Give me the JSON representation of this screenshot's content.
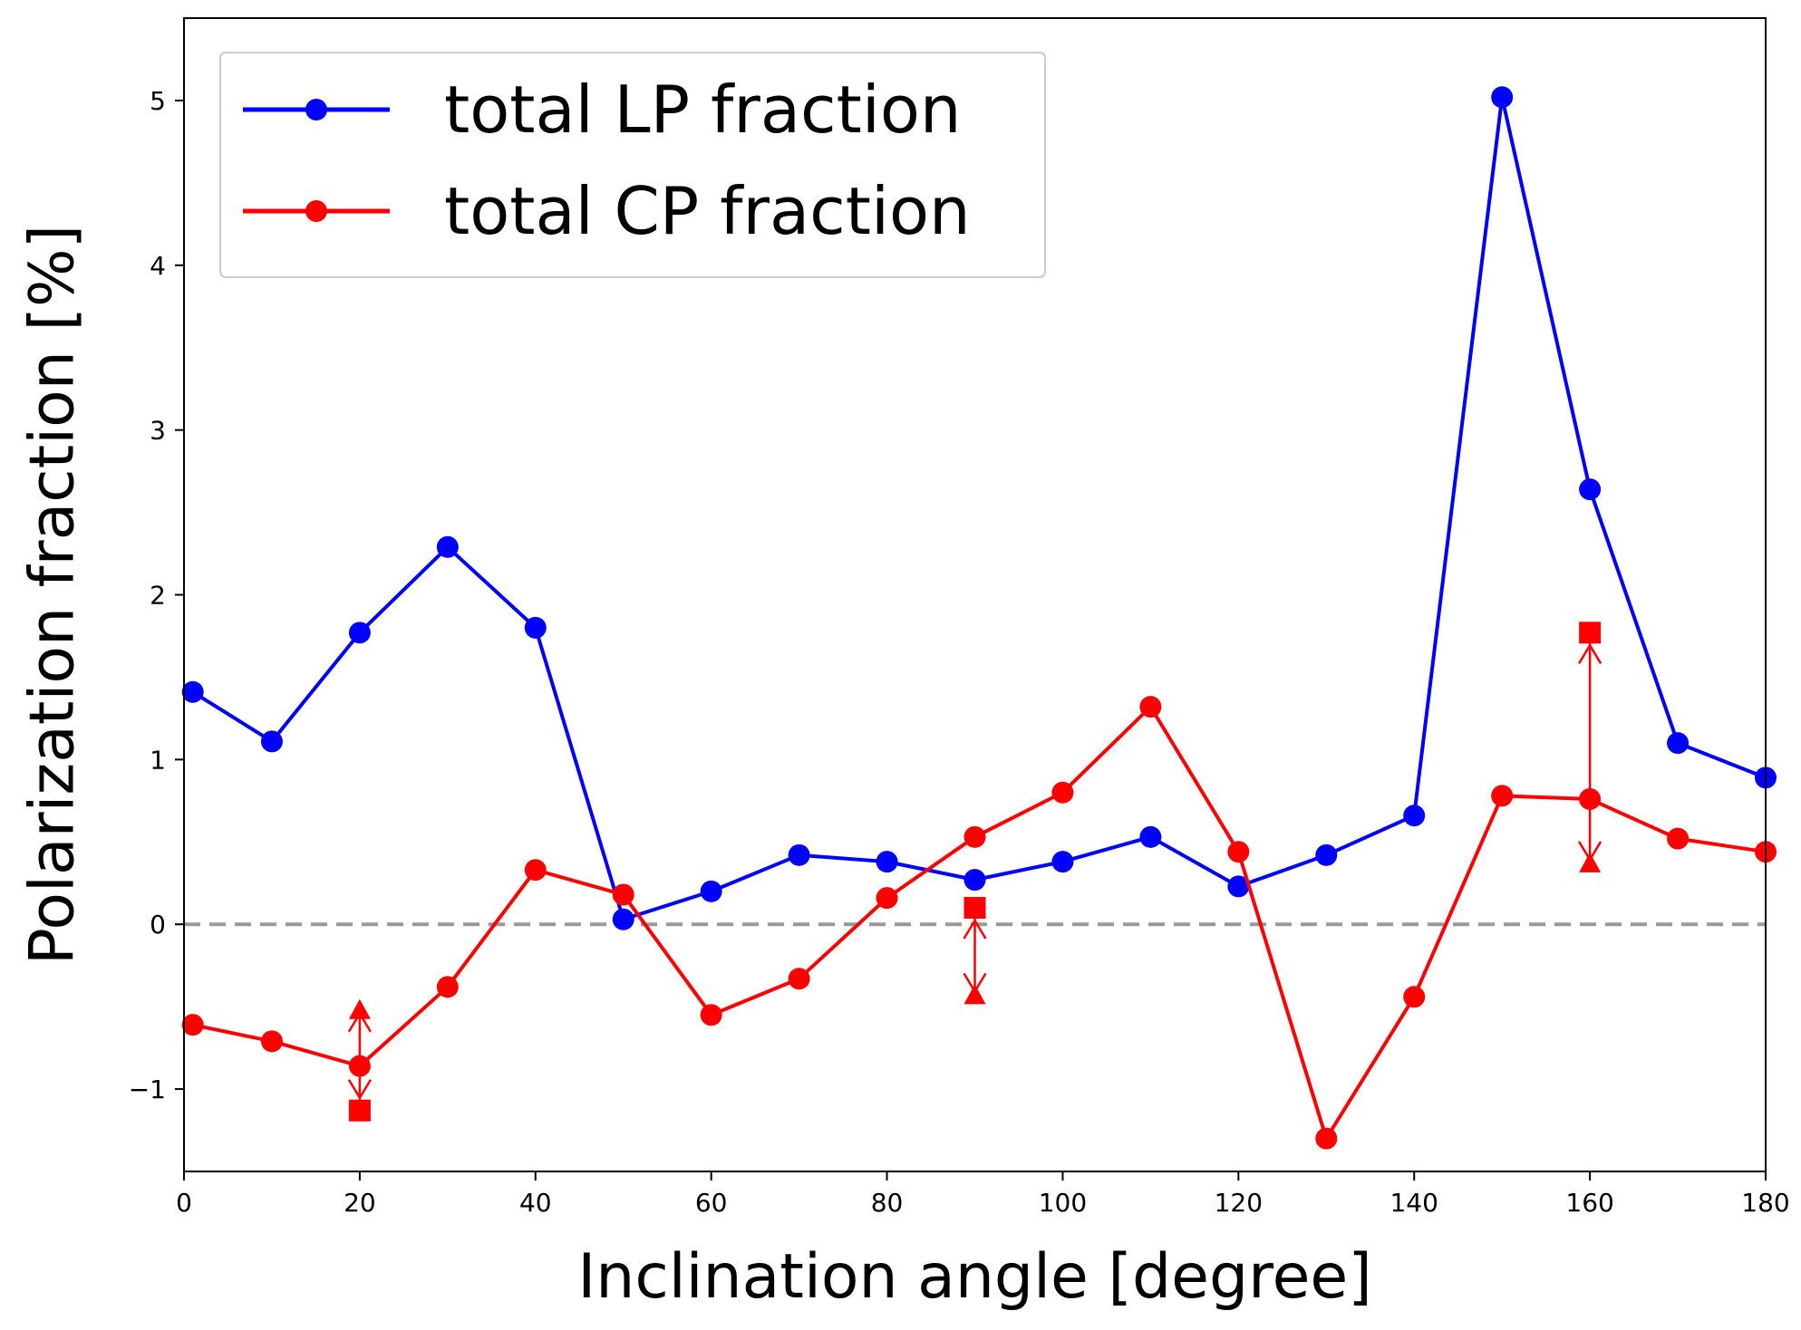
{
  "chart_data": {
    "type": "line",
    "xlabel": "Inclination angle [degree]",
    "ylabel": "Polarization fraction [%]",
    "xlim": [
      0,
      180
    ],
    "ylim": [
      -1.5,
      5.5
    ],
    "xticks": [
      0,
      20,
      40,
      60,
      80,
      100,
      120,
      140,
      160,
      180
    ],
    "xtick_labels": [
      "0",
      "20",
      "40",
      "60",
      "80",
      "100",
      "120",
      "140",
      "160",
      "180"
    ],
    "yticks": [
      -1,
      0,
      1,
      2,
      3,
      4,
      5
    ],
    "ytick_labels": [
      "−1",
      "0",
      "1",
      "2",
      "3",
      "4",
      "5"
    ],
    "grid": false,
    "legend_position": "top-left",
    "reference_line": {
      "y": 0,
      "style": "dashed",
      "color": "#999999"
    },
    "series": [
      {
        "name": "total LP fraction",
        "color": "#0000ff",
        "x": [
          1,
          10,
          20,
          30,
          40,
          50,
          60,
          70,
          80,
          90,
          100,
          110,
          120,
          130,
          140,
          150,
          160,
          170,
          180
        ],
        "y": [
          1.41,
          1.11,
          1.77,
          2.29,
          1.8,
          0.03,
          0.2,
          0.42,
          0.38,
          0.27,
          0.38,
          0.53,
          0.23,
          0.42,
          0.66,
          5.02,
          2.64,
          1.1,
          0.89
        ]
      },
      {
        "name": "total CP fraction",
        "color": "#ff0000",
        "x": [
          1,
          10,
          20,
          30,
          40,
          50,
          60,
          70,
          80,
          90,
          100,
          110,
          120,
          130,
          140,
          150,
          160,
          170,
          180
        ],
        "y": [
          -0.61,
          -0.71,
          -0.86,
          -0.38,
          0.33,
          0.18,
          -0.55,
          -0.33,
          0.16,
          0.53,
          0.8,
          1.32,
          0.44,
          -1.3,
          -0.44,
          0.78,
          0.76,
          0.52,
          0.44
        ]
      }
    ],
    "range_markers": [
      {
        "x": 20,
        "square_y": -1.13,
        "triangle_y": -0.52,
        "color": "#ff0000"
      },
      {
        "x": 90,
        "square_y": 0.1,
        "triangle_y": -0.43,
        "color": "#ff0000"
      },
      {
        "x": 160,
        "square_y": 1.77,
        "triangle_y": 0.37,
        "color": "#ff0000"
      }
    ]
  }
}
